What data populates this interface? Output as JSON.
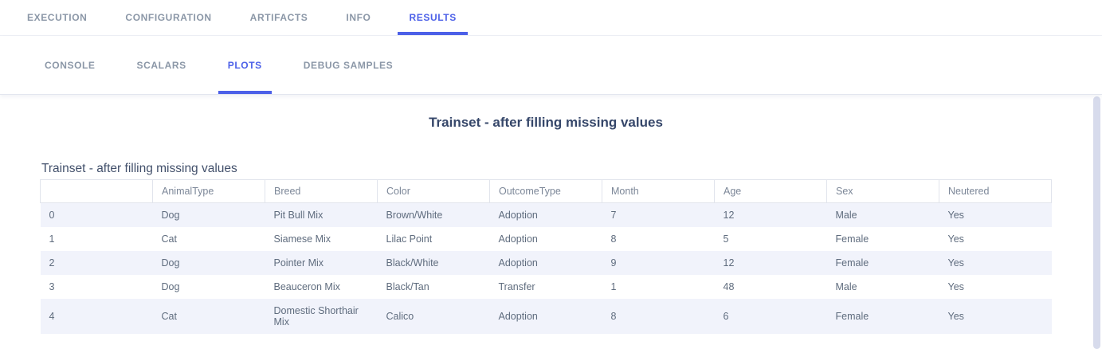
{
  "tabs_primary": {
    "items": [
      {
        "label": "EXECUTION",
        "active": false
      },
      {
        "label": "CONFIGURATION",
        "active": false
      },
      {
        "label": "ARTIFACTS",
        "active": false
      },
      {
        "label": "INFO",
        "active": false
      },
      {
        "label": "RESULTS",
        "active": true
      }
    ]
  },
  "tabs_secondary": {
    "items": [
      {
        "label": "CONSOLE",
        "active": false
      },
      {
        "label": "SCALARS",
        "active": false
      },
      {
        "label": "PLOTS",
        "active": true
      },
      {
        "label": "DEBUG SAMPLES",
        "active": false
      }
    ]
  },
  "plot": {
    "title": "Trainset - after filling missing values",
    "table_title": "Trainset - after filling missing values"
  },
  "chart_data": {
    "type": "table",
    "title": "Trainset - after filling missing values",
    "columns": [
      "",
      "AnimalType",
      "Breed",
      "Color",
      "OutcomeType",
      "Month",
      "Age",
      "Sex",
      "Neutered"
    ],
    "rows": [
      [
        "0",
        "Dog",
        "Pit Bull Mix",
        "Brown/White",
        "Adoption",
        "7",
        "12",
        "Male",
        "Yes"
      ],
      [
        "1",
        "Cat",
        "Siamese Mix",
        "Lilac Point",
        "Adoption",
        "8",
        "5",
        "Female",
        "Yes"
      ],
      [
        "2",
        "Dog",
        "Pointer Mix",
        "Black/White",
        "Adoption",
        "9",
        "12",
        "Female",
        "Yes"
      ],
      [
        "3",
        "Dog",
        "Beauceron Mix",
        "Black/Tan",
        "Transfer",
        "1",
        "48",
        "Male",
        "Yes"
      ],
      [
        "4",
        "Cat",
        "Domestic Shorthair Mix",
        "Calico",
        "Adoption",
        "8",
        "6",
        "Female",
        "Yes"
      ]
    ],
    "layout_hints": {
      "row_striping": true,
      "header_borders": true,
      "title_position": "top-left"
    }
  },
  "colors": {
    "accent": "#4c60e8",
    "inactive_tab": "#8b97a7",
    "stripe": "#f1f3fb",
    "header_text": "#7c8798",
    "body_text": "#5f6c7e",
    "title_text": "#36476a",
    "border": "#e3e6ef"
  }
}
